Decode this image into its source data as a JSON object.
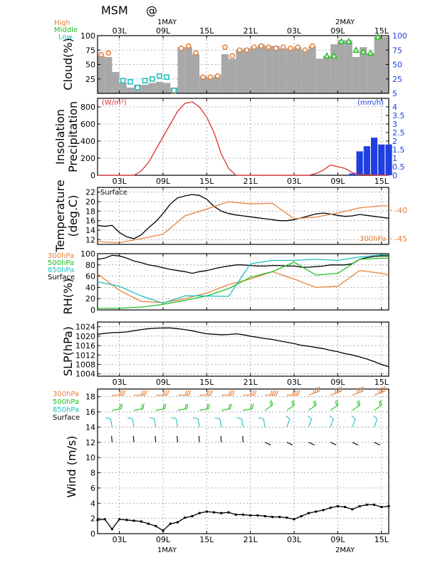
{
  "header": {
    "title": "MSM",
    "title_suffix": "@",
    "date_top_1": "1MAY",
    "date_top_2": "2MAY",
    "date_bottom_1": "1MAY",
    "date_bottom_2": "2MAY"
  },
  "x_ticks": [
    "03L",
    "09L",
    "15L",
    "21L",
    "03L",
    "09L",
    "15L"
  ],
  "x_tick_hours": [
    3,
    9,
    15,
    21,
    27,
    33,
    39
  ],
  "x_range": [
    0,
    40
  ],
  "colors": {
    "high": "#e8823a",
    "middle": "#20c020",
    "low": "#20c0c0",
    "insolation": "#e03030",
    "precip": "#1f3fe0",
    "surface": "#000000",
    "bar": "#a8a8a8",
    "blue_axis": "#1f3fe0"
  },
  "chart_data": [
    {
      "type": "bar",
      "ylabel": "Cloud(%)",
      "ylim": [
        0,
        100
      ],
      "yticks": [
        25,
        50,
        75,
        100
      ],
      "right_ticks": [
        "5",
        "25",
        "50",
        "75",
        "100"
      ],
      "legend": [
        "High",
        "Middle",
        "Low"
      ],
      "x": [
        0,
        1,
        2,
        3,
        4,
        5,
        6,
        7,
        8,
        9,
        10,
        11,
        12,
        13,
        14,
        15,
        16,
        17,
        18,
        19,
        20,
        21,
        22,
        23,
        24,
        25,
        26,
        27,
        28,
        29,
        30,
        31,
        32,
        33,
        34,
        35,
        36,
        37,
        38,
        39,
        40
      ],
      "total": [
        65,
        63,
        37,
        18,
        10,
        15,
        15,
        18,
        20,
        18,
        10,
        80,
        80,
        68,
        30,
        28,
        32,
        68,
        60,
        76,
        78,
        80,
        84,
        82,
        82,
        78,
        78,
        80,
        75,
        82,
        60,
        65,
        85,
        92,
        92,
        63,
        80,
        70,
        98,
        98,
        98
      ],
      "series": [
        {
          "name": "High",
          "values": [
            67,
            70,
            null,
            null,
            null,
            null,
            null,
            null,
            null,
            null,
            3,
            78,
            82,
            70,
            28,
            28,
            30,
            80,
            65,
            75,
            75,
            80,
            82,
            80,
            78,
            80,
            78,
            80,
            75,
            82,
            null,
            null,
            null,
            null,
            null,
            null,
            null,
            null,
            null,
            null,
            null
          ]
        },
        {
          "name": "Middle",
          "values": [
            null,
            null,
            null,
            null,
            null,
            null,
            null,
            null,
            null,
            null,
            null,
            null,
            null,
            null,
            null,
            null,
            null,
            null,
            null,
            null,
            null,
            null,
            null,
            null,
            null,
            null,
            null,
            null,
            null,
            null,
            null,
            65,
            65,
            90,
            90,
            75,
            72,
            70,
            98,
            null,
            null
          ]
        },
        {
          "name": "Low",
          "values": [
            null,
            null,
            null,
            22,
            20,
            10,
            22,
            25,
            30,
            28,
            5,
            null,
            null,
            null,
            null,
            null,
            null,
            null,
            null,
            null,
            null,
            null,
            null,
            null,
            null,
            null,
            null,
            null,
            null,
            null,
            null,
            null,
            null,
            null,
            null,
            null,
            null,
            null,
            null,
            null,
            null
          ]
        }
      ]
    },
    {
      "type": "line",
      "ylabel": "Insolation Precipitation",
      "left_unit": "(W/m²)",
      "right_unit": "(mm/h)",
      "ylim": [
        0,
        900
      ],
      "yticks": [
        0,
        200,
        400,
        600,
        800
      ],
      "right_ylim": [
        0,
        4.5
      ],
      "right_ticks": [
        "0",
        "0.5",
        "1",
        "1.5",
        "2",
        "2.5",
        "3",
        "3.5",
        "4"
      ],
      "insolation_x": [
        0,
        1,
        2,
        3,
        4,
        5,
        6,
        7,
        8,
        9,
        10,
        11,
        12,
        13,
        14,
        15,
        16,
        17,
        18,
        19,
        20,
        21,
        22,
        23,
        24,
        25,
        26,
        27,
        28,
        29,
        30,
        31,
        32,
        33,
        34,
        35,
        36,
        37,
        38,
        39,
        40
      ],
      "insolation": [
        0,
        0,
        0,
        0,
        0,
        0,
        50,
        150,
        300,
        450,
        600,
        750,
        840,
        860,
        800,
        680,
        500,
        250,
        80,
        0,
        0,
        0,
        0,
        0,
        0,
        0,
        0,
        0,
        0,
        0,
        20,
        60,
        120,
        100,
        80,
        30,
        10,
        5,
        5,
        0,
        0
      ],
      "precip_x": [
        35,
        36,
        37,
        38,
        39,
        40
      ],
      "precip": [
        0.1,
        1.4,
        1.7,
        2.2,
        1.8,
        1.8
      ]
    },
    {
      "type": "line",
      "ylabel": "Temperature (deg.C)",
      "series_label": "Surface",
      "ylim": [
        11,
        23
      ],
      "yticks": [
        12,
        14,
        16,
        18,
        20,
        22
      ],
      "right_ylim": [
        -46,
        -36
      ],
      "right_ticks": [
        "-40",
        "-45"
      ],
      "right_tick_values": [
        -40,
        -45
      ],
      "series": [
        {
          "name": "Surface",
          "x": [
            0,
            1,
            2,
            3,
            4,
            5,
            6,
            7,
            8,
            9,
            10,
            11,
            12,
            13,
            14,
            15,
            16,
            17,
            18,
            19,
            20,
            21,
            22,
            23,
            24,
            25,
            26,
            27,
            28,
            29,
            30,
            31,
            32,
            33,
            34,
            35,
            36,
            37,
            38,
            39,
            40
          ],
          "values": [
            15,
            14.8,
            15,
            13.5,
            12.6,
            12.2,
            13,
            14.5,
            15.8,
            17.5,
            19.5,
            20.8,
            21.2,
            21.5,
            21.3,
            20.5,
            19,
            18,
            17.5,
            17.2,
            17,
            16.8,
            16.6,
            16.4,
            16.2,
            16,
            16,
            16.2,
            16.6,
            17,
            17.4,
            17.6,
            17.4,
            17.1,
            16.9,
            17,
            17.3,
            17.1,
            16.9,
            16.7,
            16.5
          ]
        },
        {
          "name": "300hPa",
          "x": [
            0,
            3,
            6,
            9,
            12,
            15,
            18,
            21,
            24,
            27,
            30,
            33,
            36,
            39,
            40
          ],
          "values": [
            -45.5,
            -45.7,
            -45.0,
            -44.2,
            -41.0,
            -39.8,
            -38.5,
            -38.9,
            -38.8,
            -41.5,
            -41.2,
            -40.5,
            -39.6,
            -39.2,
            -39.3
          ]
        }
      ]
    },
    {
      "type": "line",
      "ylabel": "RH(%)",
      "ylim": [
        0,
        100
      ],
      "yticks": [
        0,
        20,
        40,
        60,
        80,
        100
      ],
      "legend": [
        "300hPa",
        "500hPa",
        "850hPa",
        "Surface"
      ],
      "series": [
        {
          "name": "Surface",
          "x": [
            0,
            1,
            2,
            3,
            4,
            5,
            6,
            7,
            8,
            9,
            10,
            11,
            12,
            13,
            14,
            15,
            16,
            17,
            18,
            19,
            20,
            21,
            22,
            23,
            24,
            25,
            26,
            27,
            28,
            29,
            30,
            31,
            32,
            33,
            34,
            35,
            36,
            37,
            38,
            39,
            40
          ],
          "values": [
            90,
            92,
            97,
            96,
            92,
            87,
            84,
            80,
            78,
            75,
            72,
            70,
            68,
            65,
            68,
            70,
            73,
            76,
            78,
            80,
            80,
            79,
            78,
            78,
            79,
            79,
            78,
            78,
            76,
            76,
            77,
            78,
            80,
            80,
            80,
            82,
            90,
            93,
            95,
            96,
            96
          ]
        },
        {
          "name": "300hPa",
          "x": [
            0,
            3,
            6,
            9,
            12,
            15,
            18,
            21,
            24,
            27,
            30,
            33,
            36,
            39,
            40
          ],
          "values": [
            64,
            35,
            15,
            13,
            20,
            30,
            45,
            55,
            68,
            55,
            40,
            42,
            70,
            65,
            62
          ]
        },
        {
          "name": "500hPa",
          "x": [
            0,
            3,
            6,
            9,
            12,
            15,
            18,
            21,
            24,
            27,
            30,
            33,
            36,
            39,
            40
          ],
          "values": [
            3,
            3,
            5,
            10,
            17,
            25,
            38,
            58,
            68,
            85,
            62,
            65,
            90,
            92,
            92
          ]
        },
        {
          "name": "850hPa",
          "x": [
            0,
            3,
            6,
            9,
            12,
            15,
            18,
            21,
            24,
            27,
            30,
            33,
            36,
            39,
            40
          ],
          "values": [
            50,
            42,
            25,
            12,
            25,
            25,
            24,
            82,
            88,
            88,
            90,
            88,
            94,
            98,
            98
          ]
        }
      ]
    },
    {
      "type": "line",
      "ylabel": "SLP(hPa)",
      "ylim": [
        1003,
        1026
      ],
      "yticks": [
        1004,
        1008,
        1012,
        1016,
        1020,
        1024
      ],
      "series": [
        {
          "name": "SLP",
          "x": [
            0,
            1,
            2,
            3,
            4,
            5,
            6,
            7,
            8,
            9,
            10,
            11,
            12,
            13,
            14,
            15,
            16,
            17,
            18,
            19,
            20,
            21,
            22,
            23,
            24,
            25,
            26,
            27,
            28,
            29,
            30,
            31,
            32,
            33,
            34,
            35,
            36,
            37,
            38,
            39,
            40
          ],
          "values": [
            1020.8,
            1021.2,
            1021.5,
            1021.6,
            1021.8,
            1022.3,
            1022.8,
            1023.2,
            1023.4,
            1023.5,
            1023.5,
            1023.2,
            1022.8,
            1022.3,
            1021.6,
            1021.0,
            1020.8,
            1020.6,
            1020.7,
            1021.0,
            1020.6,
            1020.0,
            1019.5,
            1019.0,
            1018.6,
            1018.0,
            1017.4,
            1016.9,
            1016.1,
            1015.7,
            1015.2,
            1014.7,
            1014.0,
            1013.4,
            1012.6,
            1012.0,
            1011.2,
            1010.3,
            1009.2,
            1008.0,
            1007.0
          ]
        }
      ]
    },
    {
      "type": "line",
      "ylabel": "Wind (m/s)",
      "ylim": [
        0,
        19
      ],
      "yticks": [
        0,
        2,
        4,
        6,
        8,
        10,
        12,
        14,
        16,
        18
      ],
      "legend": [
        "300hPa",
        "500hPa",
        "850hPa",
        "Surface"
      ],
      "series": [
        {
          "name": "Surface",
          "x": [
            0,
            1,
            2,
            3,
            4,
            5,
            6,
            7,
            8,
            9,
            10,
            11,
            12,
            13,
            14,
            15,
            16,
            17,
            18,
            19,
            20,
            21,
            22,
            23,
            24,
            25,
            26,
            27,
            28,
            29,
            30,
            31,
            32,
            33,
            34,
            35,
            36,
            37,
            38,
            39,
            40
          ],
          "values": [
            1.8,
            1.9,
            0.6,
            1.9,
            1.8,
            1.7,
            1.6,
            1.3,
            1.0,
            0.4,
            1.3,
            1.5,
            2.1,
            2.3,
            2.7,
            2.9,
            2.8,
            2.7,
            2.8,
            2.5,
            2.5,
            2.4,
            2.4,
            2.3,
            2.2,
            2.2,
            2.1,
            1.9,
            2.3,
            2.7,
            2.9,
            3.1,
            3.4,
            3.6,
            3.5,
            3.2,
            3.6,
            3.8,
            3.8,
            3.5,
            3.6
          ]
        }
      ]
    }
  ]
}
